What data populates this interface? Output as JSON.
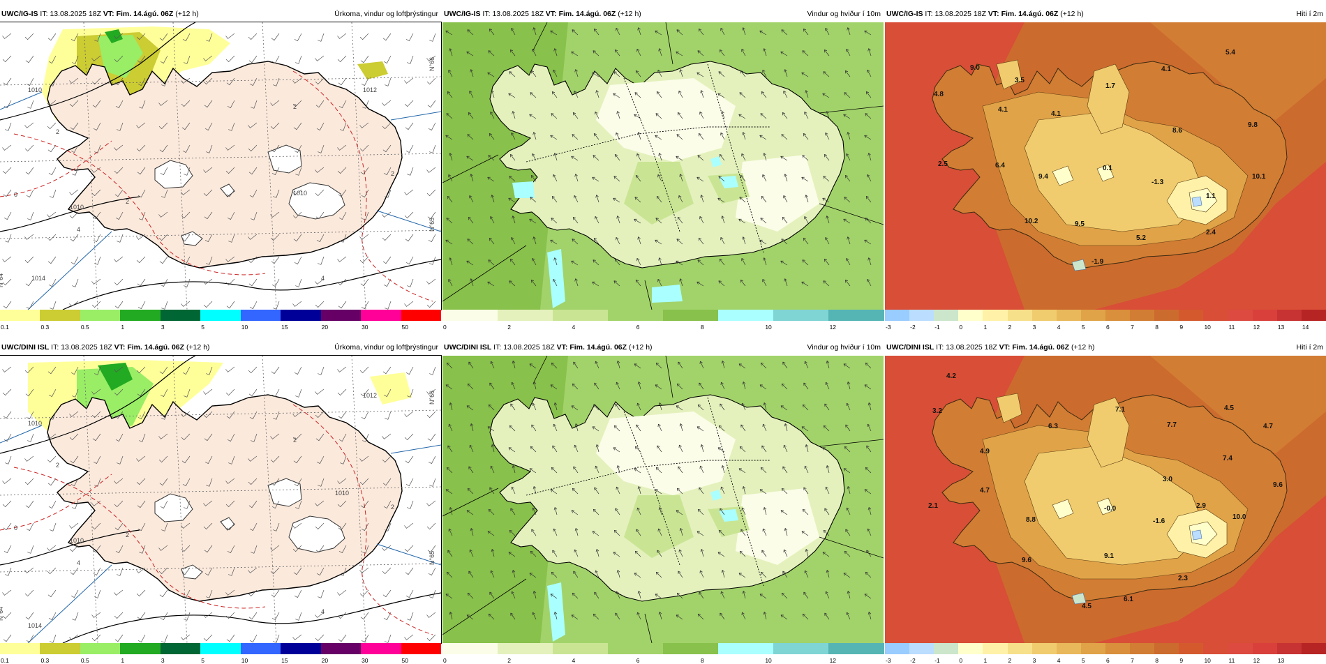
{
  "rows": [
    {
      "panels": [
        {
          "model": "UWC/IG-IS",
          "it_label": "IT:",
          "it": "13.08.2025 18Z",
          "vt_label": "VT:",
          "vt": "Fim. 14.ágú. 06Z",
          "lead": "(+12 h)",
          "product": "Úrkoma, vindur og loftþrýstingur",
          "type": "precip"
        },
        {
          "model": "UWC/IG-IS",
          "it_label": "IT:",
          "it": "13.08.2025 18Z",
          "vt_label": "VT:",
          "vt": "Fim. 14.ágú. 06Z",
          "lead": "(+12 h)",
          "product": "Vindur og hviður í 10m",
          "type": "wind"
        },
        {
          "model": "UWC/IG-IS",
          "it_label": "IT:",
          "it": "13.08.2025 18Z",
          "vt_label": "VT:",
          "vt": "Fim. 14.ágú. 06Z",
          "lead": "(+12 h)",
          "product": "Hiti í 2m",
          "type": "temp",
          "temps": [
            "5.4",
            "4.1",
            "9.0",
            "3.5",
            "1.7",
            "4.8",
            "4.1",
            "4.1",
            "8.6",
            "9.8",
            "2.5",
            "6.4",
            "9.4",
            "0.1",
            "-1.3",
            "10.1",
            "1.1",
            "10.2",
            "9.5",
            "5.2",
            "2.4",
            "-1.9"
          ]
        }
      ]
    },
    {
      "panels": [
        {
          "model": "UWC/DINI ISL",
          "it_label": "IT:",
          "it": "13.08.2025 18Z",
          "vt_label": "VT:",
          "vt": "Fim. 14.ágú. 06Z",
          "lead": "(+12 h)",
          "product": "Úrkoma, vindur og loftþrýstingur",
          "type": "precip"
        },
        {
          "model": "UWC/DINI ISL",
          "it_label": "IT:",
          "it": "13.08.2025 18Z",
          "vt_label": "VT:",
          "vt": "Fim. 14.ágú. 06Z",
          "lead": "(+12 h)",
          "product": "Vindur og hviður í 10m",
          "type": "wind"
        },
        {
          "model": "UWC/DINI ISL",
          "it_label": "IT:",
          "it": "13.08.2025 18Z",
          "vt_label": "VT:",
          "vt": "Fim. 14.ágú. 06Z",
          "lead": "(+12 h)",
          "product": "Hiti í 2m",
          "type": "temp",
          "temps": [
            "4.2",
            "3.2",
            "7.1",
            "4.5",
            "6.3",
            "7.7",
            "4.7",
            "4.9",
            "7.4",
            "3.0",
            "9.6",
            "4.7",
            "2.1",
            "-0.0",
            "2.9",
            "8.8",
            "-1.6",
            "10.0",
            "9.6",
            "9.1",
            "2.3",
            "6.1",
            "4.5"
          ]
        }
      ]
    }
  ],
  "precip_map": {
    "isobars": [
      "1010",
      "1010",
      "1010",
      "1012",
      "1014"
    ],
    "isotherms": [
      "2",
      "2",
      "4",
      "2",
      "0",
      "2",
      "4"
    ],
    "lat_labels": [
      "N°66",
      "N°65",
      "N°64"
    ]
  },
  "legends": {
    "precip": {
      "ticks": [
        "0.1",
        "0.3",
        "0.5",
        "1",
        "3",
        "5",
        "10",
        "15",
        "20",
        "30",
        "50"
      ],
      "colors": [
        "#ffff99",
        "#cccc33",
        "#99ee66",
        "#22aa22",
        "#006633",
        "#00ffff",
        "#3366ff",
        "#000099",
        "#660066",
        "#ff0099",
        "#ff0000"
      ]
    },
    "wind": {
      "ticks": [
        "0",
        "2",
        "4",
        "6",
        "8",
        "10",
        "12"
      ],
      "colors": [
        "#fbfde8",
        "#e4f1bd",
        "#c9e594",
        "#a2d36a",
        "#88c14b",
        "#aaffff",
        "#7fd4d4",
        "#55b5b5"
      ]
    },
    "temp": {
      "ticks": [
        "-3",
        "-2",
        "-1",
        "0",
        "1",
        "2",
        "3",
        "4",
        "5",
        "6",
        "7",
        "8",
        "9",
        "10",
        "11",
        "12",
        "13",
        "14"
      ],
      "colors": [
        "#99ccff",
        "#bbddff",
        "#cce6cc",
        "#ffffcc",
        "#fff2a8",
        "#f7e08a",
        "#f0cc6e",
        "#e8b85a",
        "#e0a348",
        "#d98f3c",
        "#d27d34",
        "#cc6b2e",
        "#d45a2e",
        "#d84e36",
        "#dc4a40",
        "#d9403c",
        "#c73232",
        "#b72424"
      ],
      "ticks_row2": [
        "-3",
        "-2",
        "-1",
        "0",
        "1",
        "2",
        "3",
        "4",
        "5",
        "6",
        "7",
        "8",
        "9",
        "10",
        "11",
        "12",
        "13"
      ]
    }
  }
}
